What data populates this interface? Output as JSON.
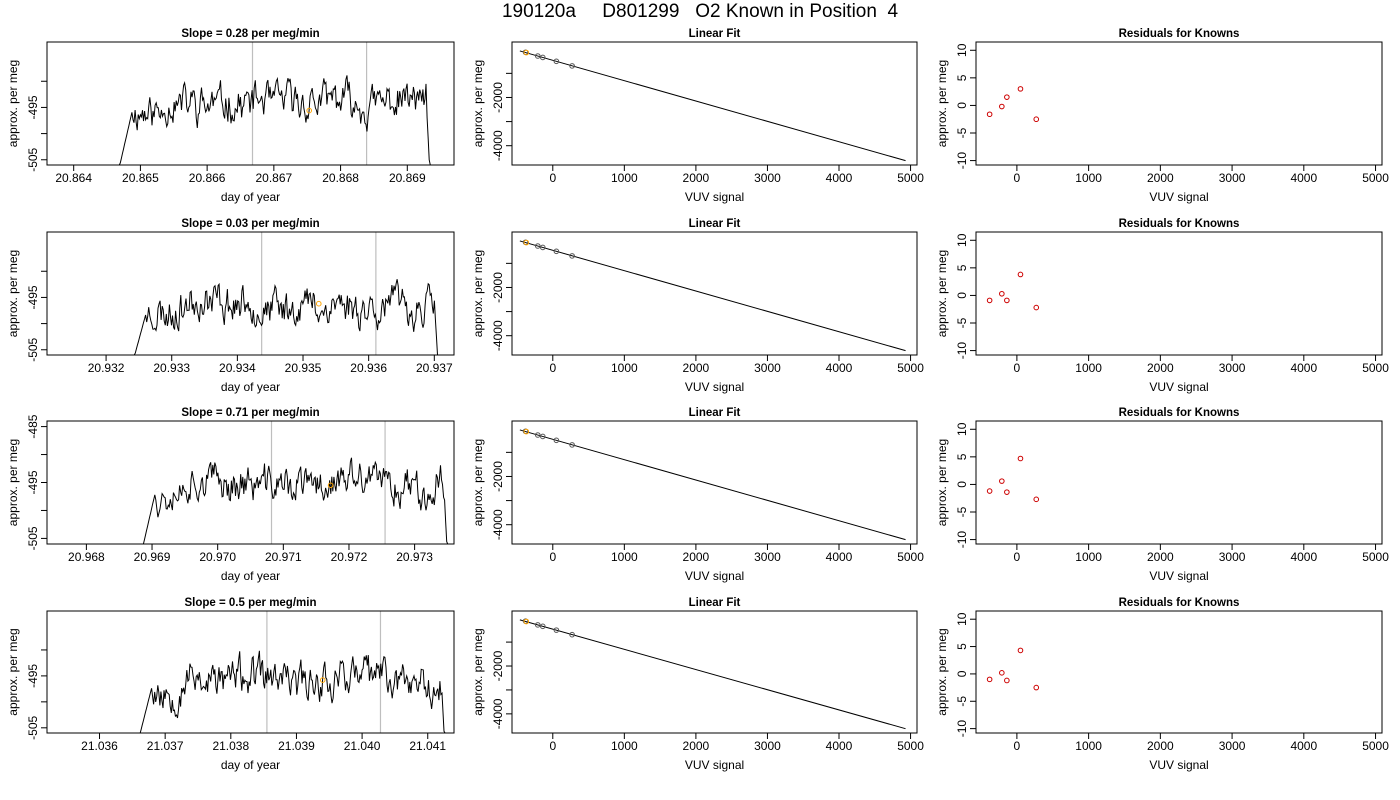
{
  "figure": {
    "title": "190120a     D801299   O2 Known in Position  4"
  },
  "colors": {
    "line": "#000000",
    "highlight": "#ffa500",
    "residual": "#cd0000",
    "fit_point": "#555555",
    "vline": "#bebebe"
  },
  "chart_data": [
    {
      "type": "line",
      "panel": "time-series-1",
      "title": "Slope =  0.28  per meg/min",
      "xlabel": "day of year",
      "ylabel": "approx. per meg",
      "xlim": [
        20.8636,
        20.8697
      ],
      "ylim": [
        -506,
        -482.5
      ],
      "xticks": [
        20.864,
        20.865,
        20.866,
        20.867,
        20.868,
        20.869
      ],
      "xtick_labels": [
        "20.864",
        "20.865",
        "20.866",
        "20.867",
        "20.868",
        "20.869"
      ],
      "yticks": [
        -505,
        -500,
        -495,
        -490
      ],
      "ytick_labels": [
        "-505",
        "",
        "-495",
        ""
      ],
      "vlines": [
        20.86668,
        20.86839
      ],
      "trace": {
        "start": 20.86462,
        "end": 20.86936,
        "base": -494,
        "amp": 2.6,
        "seed": 11
      },
      "highlight": [
        20.86753,
        -495.6
      ]
    },
    {
      "type": "scatter",
      "panel": "linear-fit-1",
      "title": "Linear Fit",
      "xlabel": "VUV signal",
      "ylabel": "approx. per meg",
      "xlim": [
        -570,
        5090
      ],
      "ylim": [
        -4800,
        300
      ],
      "xticks": [
        0,
        1000,
        2000,
        3000,
        4000,
        5000
      ],
      "xtick_labels": [
        "0",
        "1000",
        "2000",
        "3000",
        "4000",
        "5000"
      ],
      "yticks": [
        -4000,
        -3000,
        -2000,
        -1000
      ],
      "ytick_labels": [
        "-4000",
        "",
        "-2000",
        ""
      ],
      "fit_line": [
        [
          -460,
          -70
        ],
        [
          4930,
          -4620
        ]
      ],
      "points": [
        [
          -380,
          -125
        ],
        [
          -210,
          -280
        ],
        [
          -140,
          -340
        ],
        [
          50,
          -500
        ],
        [
          270,
          -690
        ]
      ],
      "highlight": [
        -370,
        -140
      ]
    },
    {
      "type": "scatter",
      "panel": "residuals-1",
      "title": "Residuals for Knowns",
      "xlabel": "VUV signal",
      "ylabel": "approx. per meg",
      "xlim": [
        -570,
        5090
      ],
      "ylim": [
        -10.8,
        11.5
      ],
      "xticks": [
        0,
        1000,
        2000,
        3000,
        4000,
        5000
      ],
      "xtick_labels": [
        "0",
        "1000",
        "2000",
        "3000",
        "4000",
        "5000"
      ],
      "yticks": [
        -10,
        -5,
        0,
        5,
        10
      ],
      "ytick_labels": [
        "-10",
        "-5",
        "0",
        "5",
        "10"
      ],
      "points": [
        [
          -380,
          -1.6
        ],
        [
          -210,
          -0.2
        ],
        [
          -140,
          1.5
        ],
        [
          50,
          3.0
        ],
        [
          270,
          -2.5
        ]
      ]
    },
    {
      "type": "line",
      "panel": "time-series-2",
      "title": "Slope =  0.03  per meg/min",
      "xlabel": "day of year",
      "ylabel": "approx. per meg",
      "xlim": [
        20.9311,
        20.9373
      ],
      "ylim": [
        -506,
        -482.5
      ],
      "xticks": [
        20.932,
        20.933,
        20.934,
        20.935,
        20.936,
        20.937
      ],
      "xtick_labels": [
        "20.932",
        "20.933",
        "20.934",
        "20.935",
        "20.936",
        "20.937"
      ],
      "yticks": [
        -505,
        -500,
        -495,
        -490
      ],
      "ytick_labels": [
        "-505",
        "",
        "-495",
        ""
      ],
      "vlines": [
        20.93437,
        20.93611
      ],
      "trace": {
        "start": 20.93235,
        "end": 20.93708,
        "base": -496.5,
        "amp": 2.6,
        "seed": 23
      },
      "highlight": [
        20.93524,
        -496.2
      ]
    },
    {
      "type": "scatter",
      "panel": "linear-fit-2",
      "title": "Linear Fit",
      "xlabel": "VUV signal",
      "ylabel": "approx. per meg",
      "xlim": [
        -570,
        5090
      ],
      "ylim": [
        -4800,
        300
      ],
      "xticks": [
        0,
        1000,
        2000,
        3000,
        4000,
        5000
      ],
      "xtick_labels": [
        "0",
        "1000",
        "2000",
        "3000",
        "4000",
        "5000"
      ],
      "yticks": [
        -4000,
        -3000,
        -2000,
        -1000
      ],
      "ytick_labels": [
        "-4000",
        "",
        "-2000",
        ""
      ],
      "fit_line": [
        [
          -460,
          -70
        ],
        [
          4930,
          -4620
        ]
      ],
      "points": [
        [
          -380,
          -125
        ],
        [
          -210,
          -280
        ],
        [
          -140,
          -340
        ],
        [
          50,
          -500
        ],
        [
          270,
          -690
        ]
      ],
      "highlight": [
        -370,
        -140
      ]
    },
    {
      "type": "scatter",
      "panel": "residuals-2",
      "title": "Residuals for Knowns",
      "xlabel": "VUV signal",
      "ylabel": "approx. per meg",
      "xlim": [
        -570,
        5090
      ],
      "ylim": [
        -10.8,
        11.5
      ],
      "xticks": [
        0,
        1000,
        2000,
        3000,
        4000,
        5000
      ],
      "xtick_labels": [
        "0",
        "1000",
        "2000",
        "3000",
        "4000",
        "5000"
      ],
      "yticks": [
        -10,
        -5,
        0,
        5,
        10
      ],
      "ytick_labels": [
        "-10",
        "-5",
        "0",
        "5",
        "10"
      ],
      "points": [
        [
          -380,
          -0.9
        ],
        [
          -210,
          0.3
        ],
        [
          -140,
          -0.9
        ],
        [
          50,
          3.8
        ],
        [
          270,
          -2.2
        ]
      ]
    },
    {
      "type": "line",
      "panel": "time-series-3",
      "title": "Slope =  0.71  per meg/min",
      "xlabel": "day of year",
      "ylabel": "approx. per meg",
      "xlim": [
        20.9674,
        20.9736
      ],
      "ylim": [
        -506,
        -484
      ],
      "xticks": [
        20.968,
        20.969,
        20.97,
        20.971,
        20.972,
        20.973
      ],
      "xtick_labels": [
        "20.968",
        "20.969",
        "20.970",
        "20.971",
        "20.972",
        "20.973"
      ],
      "yticks": [
        -505,
        -500,
        -495,
        -490,
        -485
      ],
      "ytick_labels": [
        "-505",
        "",
        "-495",
        "",
        "-485"
      ],
      "vlines": [
        20.97082,
        20.97255
      ],
      "trace": {
        "start": 20.96879,
        "end": 20.97352,
        "base": -495.3,
        "amp": 2.4,
        "seed": 37
      },
      "highlight": [
        20.97172,
        -495.5
      ]
    },
    {
      "type": "scatter",
      "panel": "linear-fit-3",
      "title": "Linear Fit",
      "xlabel": "VUV signal",
      "ylabel": "approx. per meg",
      "xlim": [
        -570,
        5090
      ],
      "ylim": [
        -4800,
        300
      ],
      "xticks": [
        0,
        1000,
        2000,
        3000,
        4000,
        5000
      ],
      "xtick_labels": [
        "0",
        "1000",
        "2000",
        "3000",
        "4000",
        "5000"
      ],
      "yticks": [
        -4000,
        -3000,
        -2000,
        -1000
      ],
      "ytick_labels": [
        "-4000",
        "",
        "-2000",
        ""
      ],
      "fit_line": [
        [
          -460,
          -70
        ],
        [
          4930,
          -4620
        ]
      ],
      "points": [
        [
          -380,
          -125
        ],
        [
          -210,
          -280
        ],
        [
          -140,
          -340
        ],
        [
          50,
          -500
        ],
        [
          270,
          -690
        ]
      ],
      "highlight": [
        -370,
        -140
      ]
    },
    {
      "type": "scatter",
      "panel": "residuals-3",
      "title": "Residuals for Knowns",
      "xlabel": "VUV signal",
      "ylabel": "approx. per meg",
      "xlim": [
        -570,
        5090
      ],
      "ylim": [
        -10.8,
        11.5
      ],
      "xticks": [
        0,
        1000,
        2000,
        3000,
        4000,
        5000
      ],
      "xtick_labels": [
        "0",
        "1000",
        "2000",
        "3000",
        "4000",
        "5000"
      ],
      "yticks": [
        -10,
        -5,
        0,
        5,
        10
      ],
      "ytick_labels": [
        "-10",
        "-5",
        "0",
        "5",
        "10"
      ],
      "points": [
        [
          -380,
          -1.2
        ],
        [
          -210,
          0.6
        ],
        [
          -140,
          -1.4
        ],
        [
          50,
          4.7
        ],
        [
          270,
          -2.7
        ]
      ]
    },
    {
      "type": "line",
      "panel": "time-series-4",
      "title": "Slope =  0.5  per meg/min",
      "xlabel": "day of year",
      "ylabel": "approx. per meg",
      "xlim": [
        21.0352,
        21.0414
      ],
      "ylim": [
        -506,
        -482.5
      ],
      "xticks": [
        21.036,
        21.037,
        21.038,
        21.039,
        21.04,
        21.041
      ],
      "xtick_labels": [
        "21.036",
        "21.037",
        "21.038",
        "21.039",
        "21.040",
        "21.041"
      ],
      "yticks": [
        -505,
        -500,
        -495,
        -490
      ],
      "ytick_labels": [
        "-505",
        "",
        "-495",
        ""
      ],
      "vlines": [
        21.03855,
        21.04028
      ],
      "trace": {
        "start": 21.03654,
        "end": 21.04128,
        "base": -495.5,
        "amp": 2.7,
        "seed": 53
      },
      "highlight": [
        21.0394,
        -495.8
      ]
    },
    {
      "type": "scatter",
      "panel": "linear-fit-4",
      "title": "Linear Fit",
      "xlabel": "VUV signal",
      "ylabel": "approx. per meg",
      "xlim": [
        -570,
        5090
      ],
      "ylim": [
        -4800,
        300
      ],
      "xticks": [
        0,
        1000,
        2000,
        3000,
        4000,
        5000
      ],
      "xtick_labels": [
        "0",
        "1000",
        "2000",
        "3000",
        "4000",
        "5000"
      ],
      "yticks": [
        -4000,
        -3000,
        -2000,
        -1000
      ],
      "ytick_labels": [
        "-4000",
        "",
        "-2000",
        ""
      ],
      "fit_line": [
        [
          -460,
          -70
        ],
        [
          4930,
          -4620
        ]
      ],
      "points": [
        [
          -380,
          -125
        ],
        [
          -210,
          -280
        ],
        [
          -140,
          -340
        ],
        [
          50,
          -500
        ],
        [
          270,
          -690
        ]
      ],
      "highlight": [
        -370,
        -140
      ]
    },
    {
      "type": "scatter",
      "panel": "residuals-4",
      "title": "Residuals for Knowns",
      "xlabel": "VUV signal",
      "ylabel": "approx. per meg",
      "xlim": [
        -570,
        5090
      ],
      "ylim": [
        -10.8,
        11.5
      ],
      "xticks": [
        0,
        1000,
        2000,
        3000,
        4000,
        5000
      ],
      "xtick_labels": [
        "0",
        "1000",
        "2000",
        "3000",
        "4000",
        "5000"
      ],
      "yticks": [
        -10,
        -5,
        0,
        5,
        10
      ],
      "ytick_labels": [
        "-10",
        "-5",
        "0",
        "5",
        "10"
      ],
      "points": [
        [
          -380,
          -1.0
        ],
        [
          -210,
          0.2
        ],
        [
          -140,
          -1.2
        ],
        [
          50,
          4.3
        ],
        [
          270,
          -2.5
        ]
      ]
    }
  ]
}
